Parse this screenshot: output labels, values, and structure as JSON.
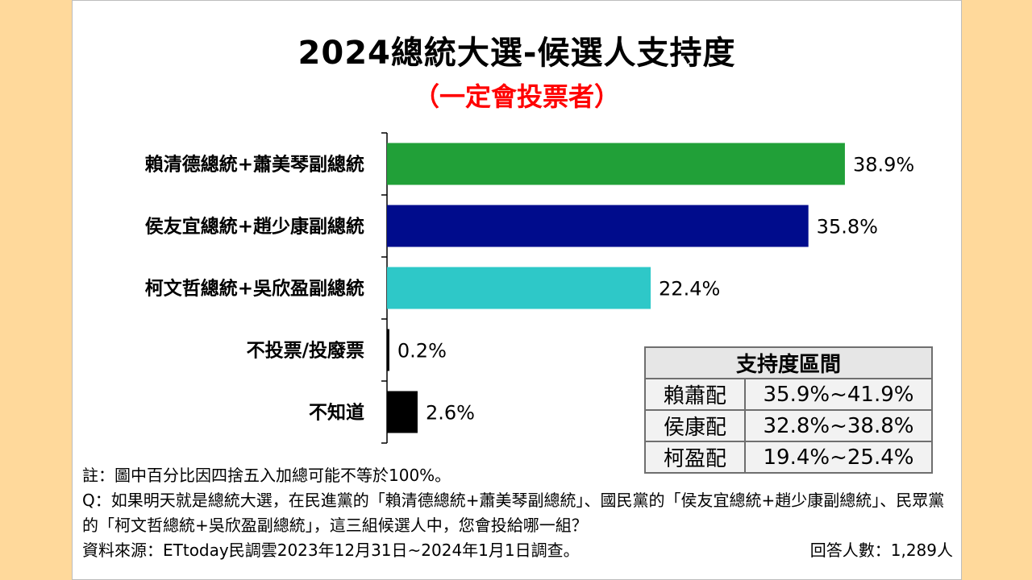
{
  "title": "2024總統大選-候選人支持度",
  "subtitle": "（一定會投票者）",
  "chart_data": {
    "type": "bar",
    "orientation": "horizontal",
    "categories": [
      "賴清德總統+蕭美琴副總統",
      "侯友宜總統+趙少康副總統",
      "柯文哲總統+吳欣盈副總統",
      "不投票/投廢票",
      "不知道"
    ],
    "values": [
      38.9,
      35.8,
      22.4,
      0.2,
      2.6
    ],
    "value_labels": [
      "38.9%",
      "35.8%",
      "22.4%",
      "0.2%",
      "2.6%"
    ],
    "colors": [
      "#21a038",
      "#000c8c",
      "#2ec8c8",
      "#000000",
      "#000000"
    ],
    "xlim": [
      0,
      45
    ],
    "grid": false,
    "xaxis_visible": false
  },
  "range_table": {
    "header": "支持度區間",
    "rows": [
      {
        "name": "賴蕭配",
        "range": "35.9%~41.9%"
      },
      {
        "name": "侯康配",
        "range": "32.8%~38.8%"
      },
      {
        "name": "柯盈配",
        "range": "19.4%~25.4%"
      }
    ]
  },
  "notes": {
    "note": "註：圖中百分比因四捨五入加總可能不等於100%。",
    "question": "Q：如果明天就是總統大選，在民進黨的「賴清德總統+蕭美琴副總統」、國民黨的「侯友宜總統+趙少康副總統」、民眾黨的「柯文哲總統+吳欣盈副總統」，這三組候選人中，您會投給哪一組？",
    "source": "資料來源：ETtoday民調雲2023年12月31日~2024年1月1日調查。",
    "respondents": "回答人數：1,289人"
  },
  "colors": {
    "background": "#ffd99b",
    "panel": "#ffffff",
    "subtitle": "#ff0000"
  }
}
